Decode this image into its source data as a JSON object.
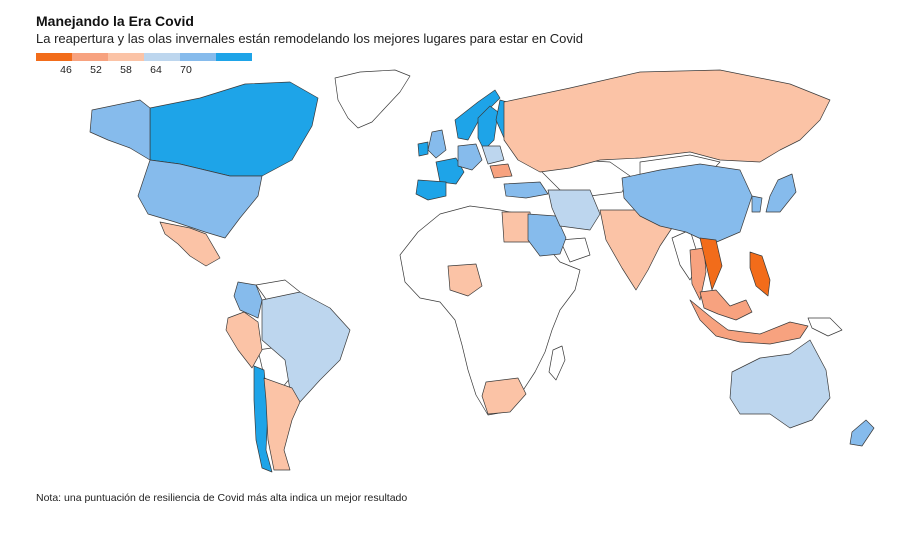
{
  "header": {
    "title": "Manejando la Era Covid",
    "subtitle": "La reapertura y las olas invernales están remodelando los mejores lugares para estar en Covid"
  },
  "legend": {
    "swatch_colors": [
      "#f26c1a",
      "#f7a27f",
      "#fbc3a6",
      "#bdd6ee",
      "#86bbec",
      "#1ea4e8"
    ],
    "ticks": [
      "46",
      "52",
      "58",
      "64",
      "70"
    ]
  },
  "colors": {
    "no_data": "#ffffff",
    "border": "#3a3a3a",
    "very_low": "#f26c1a",
    "low": "#f7a27f",
    "mid_low": "#fbc3a6",
    "mid_high": "#bdd6ee",
    "high": "#86bbec",
    "very_high": "#1ea4e8"
  },
  "map_data": {
    "score_bins": [
      "<46",
      "46-52",
      "52-58",
      "58-64",
      "64-70",
      ">70"
    ],
    "regions": [
      {
        "name": "Canada",
        "bin": 5
      },
      {
        "name": "Alaska",
        "bin": 4
      },
      {
        "name": "United States",
        "bin": 4
      },
      {
        "name": "Mexico",
        "bin": 2
      },
      {
        "name": "Colombia",
        "bin": 4
      },
      {
        "name": "Brazil",
        "bin": 3
      },
      {
        "name": "Peru",
        "bin": 2
      },
      {
        "name": "Chile",
        "bin": 5
      },
      {
        "name": "Argentina",
        "bin": 2
      },
      {
        "name": "Norway",
        "bin": 5
      },
      {
        "name": "Sweden",
        "bin": 5
      },
      {
        "name": "Finland",
        "bin": 5
      },
      {
        "name": "United Kingdom",
        "bin": 4
      },
      {
        "name": "Ireland",
        "bin": 5
      },
      {
        "name": "France",
        "bin": 5
      },
      {
        "name": "Spain",
        "bin": 5
      },
      {
        "name": "Germany",
        "bin": 4
      },
      {
        "name": "Poland",
        "bin": 3
      },
      {
        "name": "Romania",
        "bin": 1
      },
      {
        "name": "Turkey",
        "bin": 4
      },
      {
        "name": "Russia",
        "bin": 2
      },
      {
        "name": "Egypt",
        "bin": 2
      },
      {
        "name": "Saudi Arabia",
        "bin": 4
      },
      {
        "name": "Iran",
        "bin": 3
      },
      {
        "name": "India",
        "bin": 2
      },
      {
        "name": "China",
        "bin": 4
      },
      {
        "name": "Japan",
        "bin": 4
      },
      {
        "name": "South Korea",
        "bin": 4
      },
      {
        "name": "Nigeria",
        "bin": 2
      },
      {
        "name": "South Africa",
        "bin": 2
      },
      {
        "name": "Thailand",
        "bin": 1
      },
      {
        "name": "Vietnam",
        "bin": 0
      },
      {
        "name": "Philippines",
        "bin": 0
      },
      {
        "name": "Malaysia",
        "bin": 1
      },
      {
        "name": "Indonesia",
        "bin": 1
      },
      {
        "name": "Australia",
        "bin": 3
      },
      {
        "name": "New Zealand",
        "bin": 4
      }
    ]
  },
  "footer": {
    "note": "Nota: una puntuación de resiliencia de Covid más alta indica un mejor resultado"
  }
}
